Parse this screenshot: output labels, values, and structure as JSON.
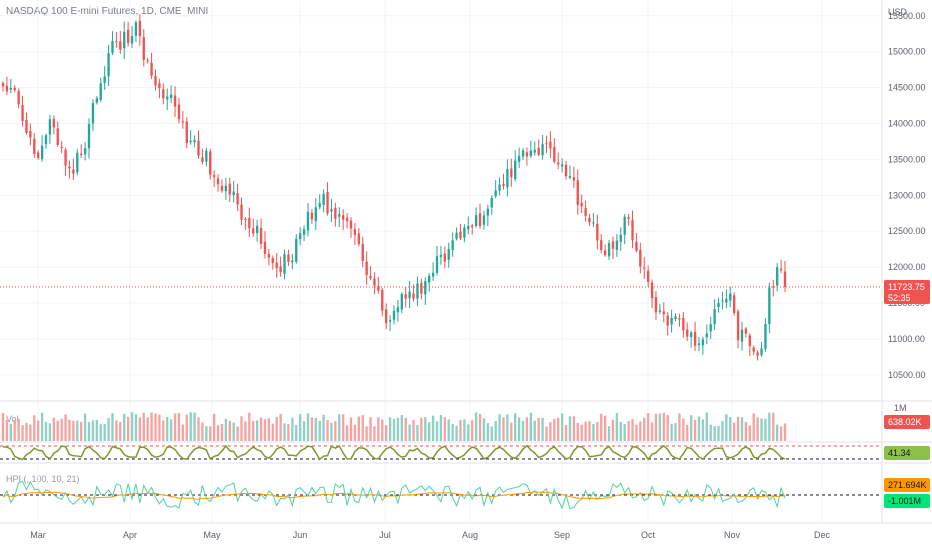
{
  "header": {
    "title": "NASDAQ 100 E-mini Futures, 1D, CME_MINI"
  },
  "indicators": {
    "vol_label": "Vol",
    "osc_label": "",
    "hpi_label": "HPI (, 100, 10, 21)"
  },
  "colors": {
    "up": "#26a69a",
    "down": "#ef5350",
    "vol_up": "#8fcfc4",
    "vol_down": "#f5a3a0",
    "osc_line": "#7a9a2e",
    "hpi_line": "#4fd1a5",
    "hpi_signal": "#ff9800",
    "last_price_bg": "#ef5350",
    "osc_tag_bg": "#8bc34a",
    "hpi_tag1_bg": "#ff9800",
    "hpi_tag2_bg": "#00e676",
    "grid": "#f0f3fa"
  },
  "chart_data": [
    {
      "type": "candlestick",
      "title": "NASDAQ 100 E-mini Futures, 1D, CME_MINI",
      "currency": "USD",
      "x_ticks": [
        "Mar",
        "Apr",
        "May",
        "Jun",
        "Jul",
        "Aug",
        "Sep",
        "Oct",
        "Nov",
        "Dec"
      ],
      "y_ticks": [
        "15500.00",
        "15000.00",
        "14500.00",
        "14000.00",
        "13500.00",
        "13000.00",
        "12500.00",
        "12000.00",
        "11500.00",
        "11000.00",
        "10500.00"
      ],
      "ylim": [
        10150,
        15720
      ],
      "last_price": 11723.75,
      "last_price_label": "11723.75",
      "countdown": "52:35",
      "waypoints": [
        [
          0,
          14550
        ],
        [
          4,
          14350
        ],
        [
          8,
          13450
        ],
        [
          12,
          14100
        ],
        [
          16,
          13350
        ],
        [
          20,
          13500
        ],
        [
          24,
          14400
        ],
        [
          28,
          15050
        ],
        [
          34,
          15300
        ],
        [
          38,
          14700
        ],
        [
          42,
          14400
        ],
        [
          47,
          13850
        ],
        [
          52,
          13500
        ],
        [
          58,
          13000
        ],
        [
          62,
          12700
        ],
        [
          66,
          12400
        ],
        [
          70,
          12000
        ],
        [
          74,
          12200
        ],
        [
          78,
          12650
        ],
        [
          82,
          12900
        ],
        [
          86,
          12700
        ],
        [
          90,
          12350
        ],
        [
          94,
          11800
        ],
        [
          98,
          11350
        ],
        [
          102,
          11500
        ],
        [
          106,
          11650
        ],
        [
          110,
          11950
        ],
        [
          114,
          12250
        ],
        [
          118,
          12450
        ],
        [
          122,
          12650
        ],
        [
          126,
          13000
        ],
        [
          130,
          13350
        ],
        [
          134,
          13600
        ],
        [
          138,
          13700
        ],
        [
          142,
          13500
        ],
        [
          146,
          13100
        ],
        [
          150,
          12600
        ],
        [
          154,
          12200
        ],
        [
          158,
          12500
        ],
        [
          160,
          12700
        ],
        [
          163,
          12050
        ],
        [
          166,
          11500
        ],
        [
          170,
          11300
        ],
        [
          174,
          11150
        ],
        [
          178,
          10950
        ],
        [
          182,
          11400
        ],
        [
          186,
          11600
        ],
        [
          188,
          11100
        ],
        [
          192,
          10800
        ],
        [
          194,
          10900
        ],
        [
          196,
          11600
        ],
        [
          198,
          12050
        ],
        [
          200,
          11723.75
        ]
      ]
    },
    {
      "type": "bar",
      "name": "Vol",
      "last_label": "638.02K",
      "axis_label": "1M"
    },
    {
      "type": "line",
      "last_label": "41.34"
    },
    {
      "type": "line",
      "name": "HPI (, 100, 10, 21)",
      "last_labels": [
        "271.694K",
        "-1.001M"
      ]
    }
  ]
}
